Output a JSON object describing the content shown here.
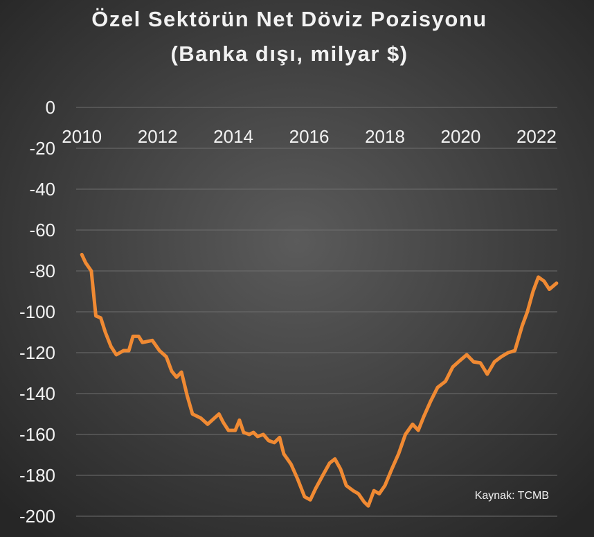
{
  "chart_data": {
    "type": "line",
    "title": "Özel Sektörün Net Döviz Pozisyonu",
    "subtitle": "(Banka dışı, milyar $)",
    "annotation": "Kaynak: TCMB",
    "x": [
      2010.0,
      2010.1,
      2010.25,
      2010.37,
      2010.5,
      2010.62,
      2010.77,
      2010.91,
      2011.1,
      2011.24,
      2011.35,
      2011.5,
      2011.6,
      2011.86,
      2012.05,
      2012.23,
      2012.37,
      2012.5,
      2012.63,
      2012.78,
      2012.92,
      2013.14,
      2013.32,
      2013.5,
      2013.62,
      2013.73,
      2013.87,
      2014.05,
      2014.16,
      2014.27,
      2014.42,
      2014.53,
      2014.64,
      2014.79,
      2014.93,
      2015.08,
      2015.22,
      2015.33,
      2015.52,
      2015.7,
      2015.88,
      2016.03,
      2016.17,
      2016.36,
      2016.54,
      2016.68,
      2016.83,
      2016.98,
      2017.16,
      2017.3,
      2017.45,
      2017.56,
      2017.71,
      2017.85,
      2018.0,
      2018.18,
      2018.36,
      2018.54,
      2018.73,
      2018.88,
      2019.02,
      2019.2,
      2019.39,
      2019.6,
      2019.79,
      2019.97,
      2020.16,
      2020.34,
      2020.52,
      2020.7,
      2020.89,
      2021.07,
      2021.25,
      2021.43,
      2021.62,
      2021.76,
      2021.91,
      2022.05,
      2022.2,
      2022.34,
      2022.53
    ],
    "series": [
      {
        "name": "Net döviz pozisyonu",
        "color": "#f08a33",
        "values": [
          -72,
          -76,
          -80,
          -102,
          -103,
          -110,
          -117,
          -121,
          -119,
          -119,
          -112,
          -112,
          -115,
          -114,
          -119,
          -122,
          -129,
          -132,
          -129.5,
          -141,
          -150,
          -152,
          -155,
          -152,
          -150,
          -154,
          -158,
          -158,
          -153,
          -159,
          -160,
          -159,
          -161,
          -160,
          -163,
          -164,
          -161.5,
          -169.5,
          -174.5,
          -182,
          -190.5,
          -192,
          -186.5,
          -180,
          -174,
          -172,
          -177,
          -185,
          -187.5,
          -189,
          -193,
          -195,
          -187.5,
          -189,
          -185,
          -177,
          -169.5,
          -160,
          -155,
          -158,
          -151.5,
          -144,
          -137,
          -134,
          -127,
          -124,
          -121,
          -124.5,
          -125,
          -130.5,
          -124.5,
          -122,
          -120,
          -119,
          -107,
          -100,
          -90,
          -83,
          -85,
          -89,
          -86
        ]
      }
    ],
    "xlim": [
      2009.85,
      2022.55
    ],
    "xticks": [
      2010,
      2012,
      2014,
      2016,
      2018,
      2020,
      2022
    ],
    "ylim": [
      -200,
      0
    ],
    "yticks": [
      0,
      -20,
      -40,
      -60,
      -80,
      -100,
      -120,
      -140,
      -160,
      -180,
      -200
    ],
    "grid": true
  }
}
